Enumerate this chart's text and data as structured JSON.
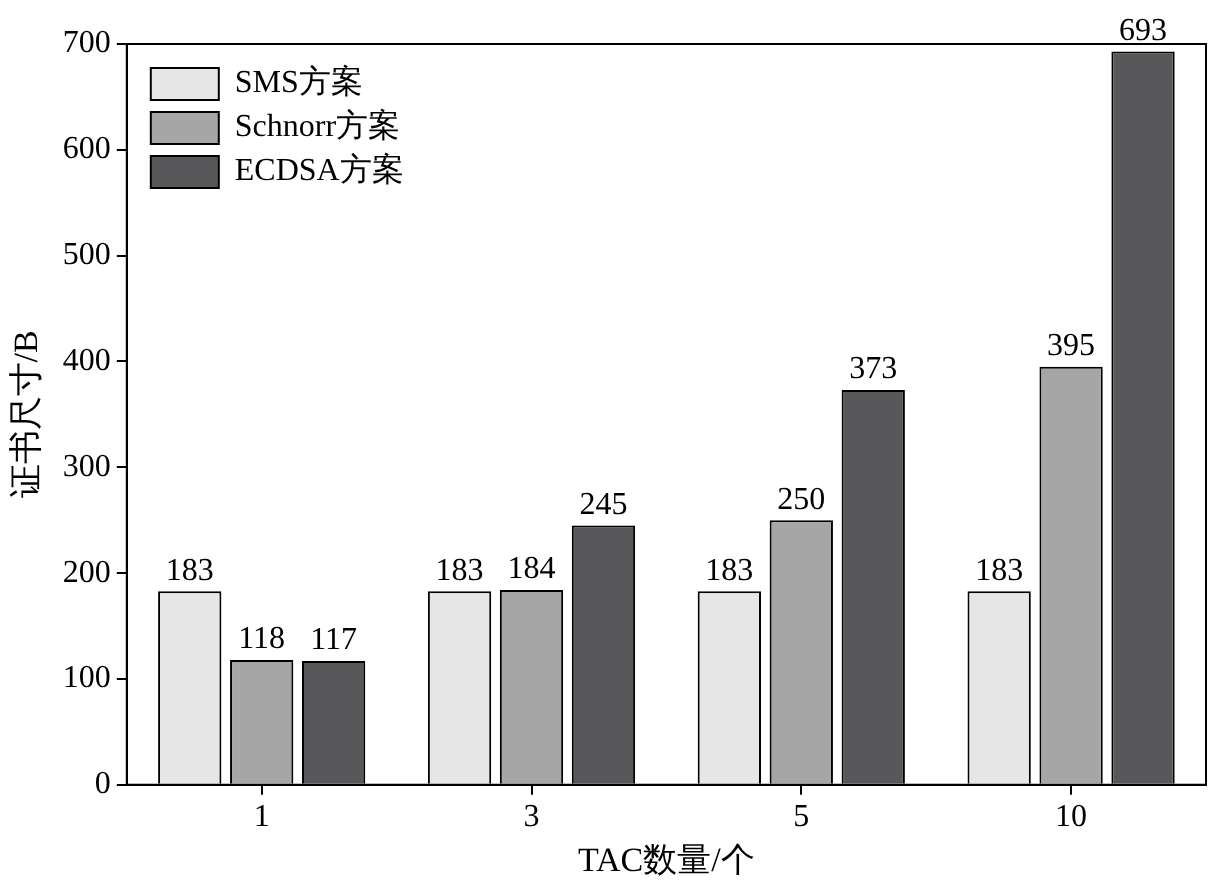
{
  "chart_data": {
    "type": "bar",
    "xlabel": "TAC数量/个",
    "ylabel": "证书尺寸/B",
    "categories": [
      "1",
      "3",
      "5",
      "10"
    ],
    "series": [
      {
        "name": "SMS方案",
        "color": "#e6e6e6",
        "values": [
          183,
          183,
          183,
          183
        ]
      },
      {
        "name": "Schnorr方案",
        "color": "#a6a6a6",
        "values": [
          118,
          184,
          250,
          395
        ]
      },
      {
        "name": "ECDSA方案",
        "color": "#58585a",
        "values": [
          117,
          245,
          373,
          693
        ]
      }
    ],
    "ylim": [
      0,
      700
    ],
    "yticks": [
      0,
      100,
      200,
      300,
      400,
      500,
      600,
      700
    ],
    "grid": false,
    "legend": "top left",
    "data_labels": true
  }
}
